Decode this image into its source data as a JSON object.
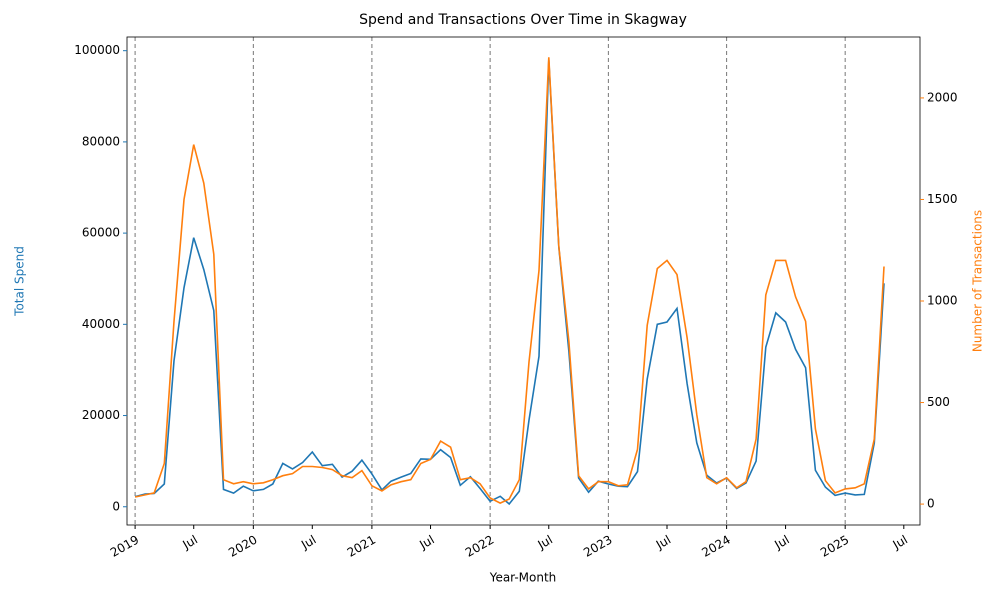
{
  "chart_data": {
    "type": "line",
    "title": "Spend and Transactions Over Time in Skagway",
    "x_label": "Year-Month",
    "y_label": "Total Spend",
    "y2_label": "Number of Transactions",
    "x": [
      "2019-01",
      "2019-02",
      "2019-03",
      "2019-04",
      "2019-05",
      "2019-06",
      "2019-07",
      "2019-08",
      "2019-09",
      "2019-10",
      "2019-11",
      "2019-12",
      "2020-01",
      "2020-02",
      "2020-03",
      "2020-04",
      "2020-05",
      "2020-06",
      "2020-07",
      "2020-08",
      "2020-09",
      "2020-10",
      "2020-11",
      "2020-12",
      "2021-01",
      "2021-02",
      "2021-03",
      "2021-04",
      "2021-05",
      "2021-06",
      "2021-07",
      "2021-08",
      "2021-09",
      "2021-10",
      "2021-11",
      "2021-12",
      "2022-01",
      "2022-02",
      "2022-03",
      "2022-04",
      "2022-05",
      "2022-06",
      "2022-07",
      "2022-08",
      "2022-09",
      "2022-10",
      "2022-11",
      "2022-12",
      "2023-01",
      "2023-02",
      "2023-03",
      "2023-04",
      "2023-05",
      "2023-06",
      "2023-07",
      "2023-08",
      "2023-09",
      "2023-10",
      "2023-11",
      "2023-12",
      "2024-01",
      "2024-02",
      "2024-03",
      "2024-04",
      "2024-05",
      "2024-06",
      "2024-07",
      "2024-08",
      "2024-09",
      "2024-10",
      "2024-11",
      "2024-12",
      "2025-01",
      "2025-02",
      "2025-03",
      "2025-04",
      "2025-05"
    ],
    "series": [
      {
        "name": "Total Spend",
        "color": "#1f77b4",
        "axis": "y",
        "values": [
          2200,
          2800,
          2900,
          5000,
          32000,
          48000,
          59000,
          52000,
          43000,
          3800,
          3000,
          4500,
          3500,
          3800,
          5000,
          9500,
          8300,
          9700,
          12000,
          9000,
          9300,
          6500,
          7800,
          10200,
          7200,
          3700,
          5600,
          6500,
          7300,
          10500,
          10400,
          12500,
          10800,
          4700,
          6600,
          4000,
          1200,
          2300,
          600,
          3400,
          19000,
          33000,
          98000,
          57000,
          34000,
          6300,
          3200,
          5600,
          5000,
          4500,
          4400,
          7700,
          28000,
          40000,
          40500,
          43500,
          27000,
          14000,
          6900,
          5200,
          6300,
          4000,
          5200,
          10000,
          35000,
          42500,
          40500,
          34500,
          30500,
          8000,
          4300,
          2500,
          3000,
          2600,
          2700,
          14000,
          49000
        ]
      },
      {
        "name": "Number of Transactions",
        "color": "#ff7f0e",
        "axis": "y2",
        "values": [
          35,
          45,
          55,
          200,
          900,
          1500,
          1770,
          1580,
          1230,
          120,
          100,
          110,
          100,
          105,
          120,
          140,
          150,
          185,
          185,
          180,
          170,
          140,
          130,
          165,
          90,
          65,
          95,
          110,
          120,
          200,
          220,
          310,
          280,
          120,
          130,
          100,
          30,
          5,
          25,
          120,
          700,
          1150,
          2200,
          1270,
          800,
          140,
          75,
          110,
          110,
          90,
          95,
          270,
          880,
          1160,
          1200,
          1130,
          820,
          440,
          130,
          100,
          130,
          80,
          110,
          320,
          1030,
          1200,
          1200,
          1020,
          900,
          370,
          115,
          55,
          75,
          80,
          100,
          320,
          1170
        ]
      }
    ],
    "xlim": [
      "2018-12-07",
      "2025-08-20"
    ],
    "xticks": [
      {
        "value": "2019-01",
        "label": "2019"
      },
      {
        "value": "2019-07",
        "label": "Jul"
      },
      {
        "value": "2020-01",
        "label": "2020"
      },
      {
        "value": "2020-07",
        "label": "Jul"
      },
      {
        "value": "2021-01",
        "label": "2021"
      },
      {
        "value": "2021-07",
        "label": "Jul"
      },
      {
        "value": "2022-01",
        "label": "2022"
      },
      {
        "value": "2022-07",
        "label": "Jul"
      },
      {
        "value": "2023-01",
        "label": "2023"
      },
      {
        "value": "2023-07",
        "label": "Jul"
      },
      {
        "value": "2024-01",
        "label": "2024"
      },
      {
        "value": "2024-07",
        "label": "Jul"
      },
      {
        "value": "2025-01",
        "label": "2025"
      },
      {
        "value": "2025-07",
        "label": "Jul"
      }
    ],
    "ylim": [
      -4000,
      103000
    ],
    "yticks": [
      0,
      20000,
      40000,
      60000,
      80000,
      100000
    ],
    "y2lim": [
      -103,
      2300
    ],
    "y2ticks": [
      0,
      500,
      1000,
      1500,
      2000
    ],
    "vlines": [
      "2019-01",
      "2020-01",
      "2021-01",
      "2022-01",
      "2023-01",
      "2024-01",
      "2025-01"
    ]
  }
}
